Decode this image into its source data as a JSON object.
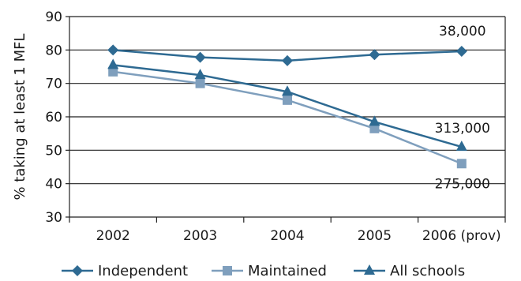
{
  "chart_data": {
    "type": "line",
    "categories": [
      "2002",
      "2003",
      "2004",
      "2005",
      "2006 (prov)"
    ],
    "ylabel": "% taking at least 1 MFL",
    "ylim": [
      30,
      90
    ],
    "yticks": [
      30,
      40,
      50,
      60,
      70,
      80,
      90
    ],
    "grid": true,
    "legend_position": "bottom",
    "series": [
      {
        "name": "Independent",
        "values": [
          80,
          77.8,
          76.8,
          78.6,
          79.6
        ],
        "color": "#2e6a92",
        "marker": "diamond",
        "end_label": "38,000"
      },
      {
        "name": "Maintained",
        "values": [
          73.5,
          70,
          65,
          56.5,
          46
        ],
        "color": "#7f9fbd",
        "marker": "square",
        "end_label": "275,000"
      },
      {
        "name": "All schools",
        "values": [
          75.5,
          72.5,
          67.5,
          58.5,
          51
        ],
        "color": "#2e6a92",
        "marker": "triangle",
        "end_label": "313,000"
      }
    ]
  }
}
